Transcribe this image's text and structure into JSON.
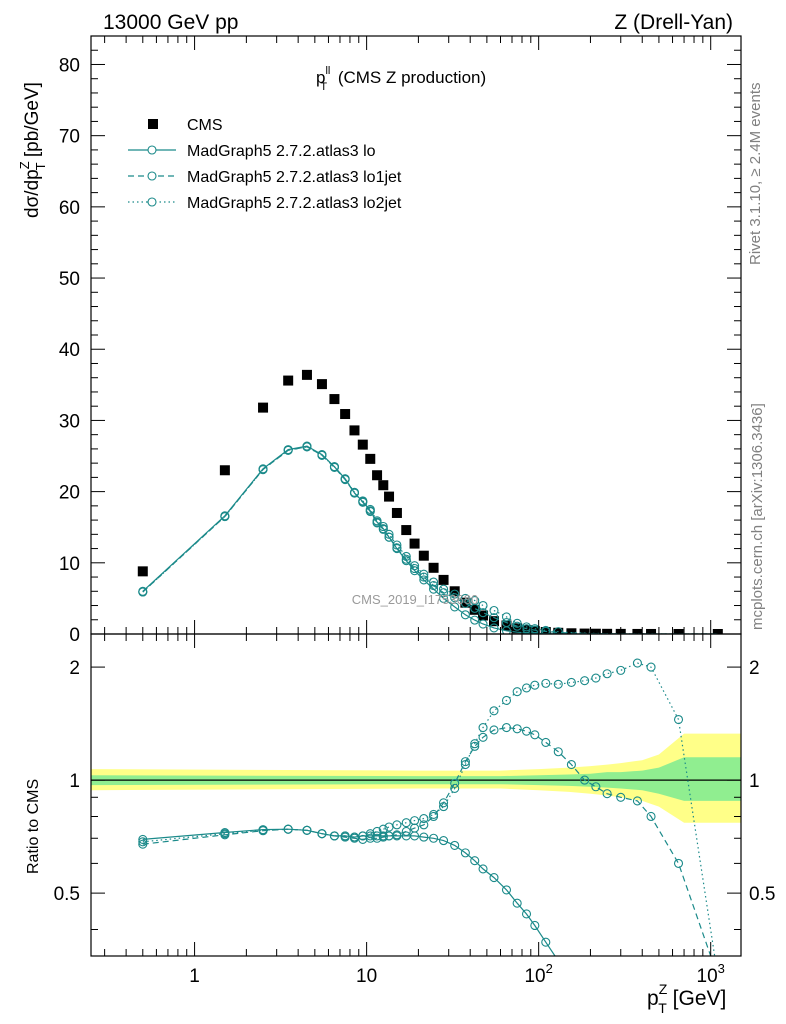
{
  "header": {
    "left": "13000 GeV pp",
    "right": "Z (Drell-Yan)"
  },
  "plot_title": {
    "main": "p",
    "sup": "ll",
    "sub": "T",
    "suffix": " (CMS Z production)"
  },
  "side_labels": {
    "right_top": "Rivet 3.1.10, ≥ 2.4M events",
    "right_bottom": "mcplots.cern.ch [arXiv:1306.3436]"
  },
  "watermark": "CMS_2019_I1753680",
  "upper_ylabel": {
    "a": "dσ/dp",
    "sup": "Z",
    "sub": "T",
    "b": " [pb/GeV]"
  },
  "lower_ylabel": "Ratio to CMS",
  "xlabel": {
    "a": "p",
    "sup": "Z",
    "sub": "T",
    "b": " [GeV]"
  },
  "legend": [
    {
      "label": "CMS",
      "style": "marker"
    },
    {
      "label": "MadGraph5 2.7.2.atlas3 lo",
      "style": "solid"
    },
    {
      "label": "MadGraph5 2.7.2.atlas3 lo1jet",
      "style": "dashed"
    },
    {
      "label": "MadGraph5 2.7.2.atlas3 lo2jet",
      "style": "dotted"
    }
  ],
  "colors": {
    "mc": "#1b8a8a",
    "data": "#000000",
    "band_inner": "#90ee90",
    "band_outer": "#ffff88"
  },
  "chart_data": [
    {
      "type": "scatter",
      "panel": "main",
      "xscale": "log",
      "xlim": [
        0.25,
        1500
      ],
      "ylim": [
        0,
        84
      ],
      "yticks": [
        0,
        10,
        20,
        30,
        40,
        50,
        60,
        70,
        80
      ],
      "xticks": [
        {
          "v": 1,
          "label": "1"
        },
        {
          "v": 10,
          "label": "10"
        },
        {
          "v": 100,
          "base": "10",
          "exp": "2"
        },
        {
          "v": 1000,
          "base": "10",
          "exp": "3"
        }
      ],
      "x": [
        0.5,
        1.5,
        2.5,
        3.5,
        4.5,
        5.5,
        6.5,
        7.5,
        8.5,
        9.5,
        10.5,
        11.5,
        12.5,
        13.5,
        15,
        17,
        19,
        21.5,
        24.5,
        28,
        32.5,
        37.5,
        42.5,
        47.5,
        55,
        65,
        75,
        85,
        95,
        110,
        130,
        155,
        185,
        215,
        250,
        300,
        375,
        450,
        650,
        1100
      ],
      "series": [
        {
          "name": "CMS",
          "style": "marker",
          "values": [
            8.8,
            23.0,
            31.8,
            35.6,
            36.4,
            35.1,
            33.0,
            30.9,
            28.6,
            26.6,
            24.6,
            22.3,
            20.9,
            19.3,
            17.0,
            14.6,
            12.7,
            11.0,
            9.3,
            7.6,
            6.0,
            4.4,
            3.4,
            2.6,
            1.8,
            1.2,
            0.8,
            0.55,
            0.4,
            0.28,
            0.17,
            0.1,
            0.06,
            0.04,
            0.025,
            0.015,
            0.008,
            0.005,
            0.002,
            0.0005
          ]
        },
        {
          "name": "MadGraph5 2.7.2.atlas3 lo",
          "style": "solid",
          "values": [
            6.0,
            16.6,
            23.2,
            25.9,
            26.4,
            25.2,
            23.5,
            21.8,
            19.8,
            18.6,
            17.3,
            15.7,
            14.8,
            13.6,
            12.0,
            10.3,
            8.9,
            7.6,
            6.3,
            5.0,
            3.8,
            2.7,
            1.95,
            1.4,
            0.85,
            0.45,
            0.25,
            0.14,
            0.08,
            0.04,
            0.017,
            0.006,
            0.002,
            0.0008,
            0.0003,
            0.0001,
            3e-05,
            1e-05,
            0,
            0
          ]
        },
        {
          "name": "MadGraph5 2.7.2.atlas3 lo1jet",
          "style": "dashed",
          "values": [
            5.9,
            16.5,
            23.1,
            25.8,
            26.3,
            25.1,
            23.4,
            21.7,
            19.8,
            18.5,
            17.2,
            15.6,
            14.7,
            13.6,
            12.1,
            10.5,
            9.2,
            8.0,
            6.8,
            5.8,
            5.1,
            4.3,
            3.6,
            3.0,
            2.3,
            1.6,
            1.1,
            0.75,
            0.53,
            0.36,
            0.21,
            0.12,
            0.07,
            0.04,
            0.025,
            0.013,
            0.007,
            0.004,
            0.0014,
            0
          ]
        },
        {
          "name": "MadGraph5 2.7.2.atlas3 lo2jet",
          "style": "dotted",
          "values": [
            5.9,
            16.5,
            23.1,
            25.8,
            26.3,
            25.1,
            23.5,
            21.8,
            19.9,
            18.7,
            17.5,
            15.9,
            15.1,
            14.0,
            12.5,
            10.9,
            9.6,
            8.4,
            7.3,
            6.3,
            5.6,
            5.0,
            4.7,
            4.0,
            3.3,
            2.4,
            1.5,
            1.0,
            0.75,
            0.5,
            0.32,
            0.2,
            0.12,
            0.07,
            0.05,
            0.03,
            0.016,
            0.01,
            0.003,
            0.0001
          ]
        }
      ]
    },
    {
      "type": "line",
      "panel": "ratio",
      "xscale": "log",
      "yscale": "log",
      "xlim": [
        0.25,
        1500
      ],
      "ylim": [
        0.34,
        2.45
      ],
      "yticks": [
        {
          "v": 0.5,
          "label": "0.5"
        },
        {
          "v": 1,
          "label": "1"
        },
        {
          "v": 2,
          "label": "2"
        }
      ],
      "ylabel": "Ratio to CMS",
      "x": [
        0.5,
        1.5,
        2.5,
        3.5,
        4.5,
        5.5,
        6.5,
        7.5,
        8.5,
        9.5,
        10.5,
        11.5,
        12.5,
        13.5,
        15,
        17,
        19,
        21.5,
        24.5,
        28,
        32.5,
        37.5,
        42.5,
        47.5,
        55,
        65,
        75,
        85,
        95,
        110,
        130,
        155,
        185,
        215,
        250,
        300,
        375,
        450,
        650,
        1100
      ],
      "series": [
        {
          "name": "MadGraph5 2.7.2.atlas3 lo",
          "style": "solid",
          "values": [
            0.695,
            0.725,
            0.738,
            0.74,
            0.735,
            0.72,
            0.71,
            0.71,
            0.705,
            0.71,
            0.71,
            0.71,
            0.71,
            0.71,
            0.71,
            0.71,
            0.71,
            0.705,
            0.7,
            0.69,
            0.67,
            0.64,
            0.61,
            0.58,
            0.55,
            0.51,
            0.47,
            0.44,
            0.41,
            0.37,
            0.33,
            null,
            null,
            null,
            null,
            null,
            null,
            null,
            null,
            null
          ]
        },
        {
          "name": "MadGraph5 2.7.2.atlas3 lo1jet",
          "style": "dashed",
          "values": [
            0.675,
            0.715,
            0.733,
            0.74,
            0.735,
            0.72,
            0.71,
            0.705,
            0.7,
            0.695,
            0.7,
            0.7,
            0.705,
            0.71,
            0.715,
            0.73,
            0.745,
            0.76,
            0.8,
            0.87,
            0.98,
            1.12,
            1.23,
            1.3,
            1.36,
            1.38,
            1.37,
            1.35,
            1.32,
            1.26,
            1.19,
            1.1,
            1.0,
            0.96,
            0.92,
            0.9,
            0.88,
            0.8,
            0.6,
            0.3
          ]
        },
        {
          "name": "MadGraph5 2.7.2.atlas3 lo2jet",
          "style": "dotted",
          "values": [
            0.685,
            0.72,
            0.735,
            0.74,
            0.735,
            0.72,
            0.71,
            0.71,
            0.705,
            0.71,
            0.72,
            0.73,
            0.74,
            0.75,
            0.76,
            0.77,
            0.78,
            0.79,
            0.81,
            0.85,
            0.95,
            1.1,
            1.25,
            1.38,
            1.53,
            1.63,
            1.72,
            1.76,
            1.79,
            1.81,
            1.8,
            1.82,
            1.84,
            1.87,
            1.92,
            1.96,
            2.05,
            2.0,
            1.45,
            0.3
          ]
        }
      ],
      "band_outer": {
        "x": [
          0.25,
          20,
          40,
          60,
          100,
          150,
          200,
          250,
          300,
          400,
          500,
          700,
          1500
        ],
        "lo": [
          0.94,
          0.95,
          0.95,
          0.95,
          0.94,
          0.93,
          0.92,
          0.91,
          0.9,
          0.88,
          0.85,
          0.77,
          0.77
        ],
        "hi": [
          1.07,
          1.06,
          1.06,
          1.06,
          1.07,
          1.08,
          1.09,
          1.1,
          1.11,
          1.13,
          1.17,
          1.33,
          1.33
        ]
      },
      "band_inner": {
        "x": [
          0.25,
          20,
          40,
          60,
          100,
          150,
          200,
          250,
          300,
          400,
          500,
          700,
          1500
        ],
        "lo": [
          0.97,
          0.975,
          0.975,
          0.975,
          0.97,
          0.965,
          0.96,
          0.955,
          0.95,
          0.94,
          0.92,
          0.88,
          0.88
        ],
        "hi": [
          1.03,
          1.025,
          1.025,
          1.025,
          1.03,
          1.035,
          1.04,
          1.05,
          1.05,
          1.06,
          1.08,
          1.15,
          1.15
        ]
      }
    }
  ]
}
